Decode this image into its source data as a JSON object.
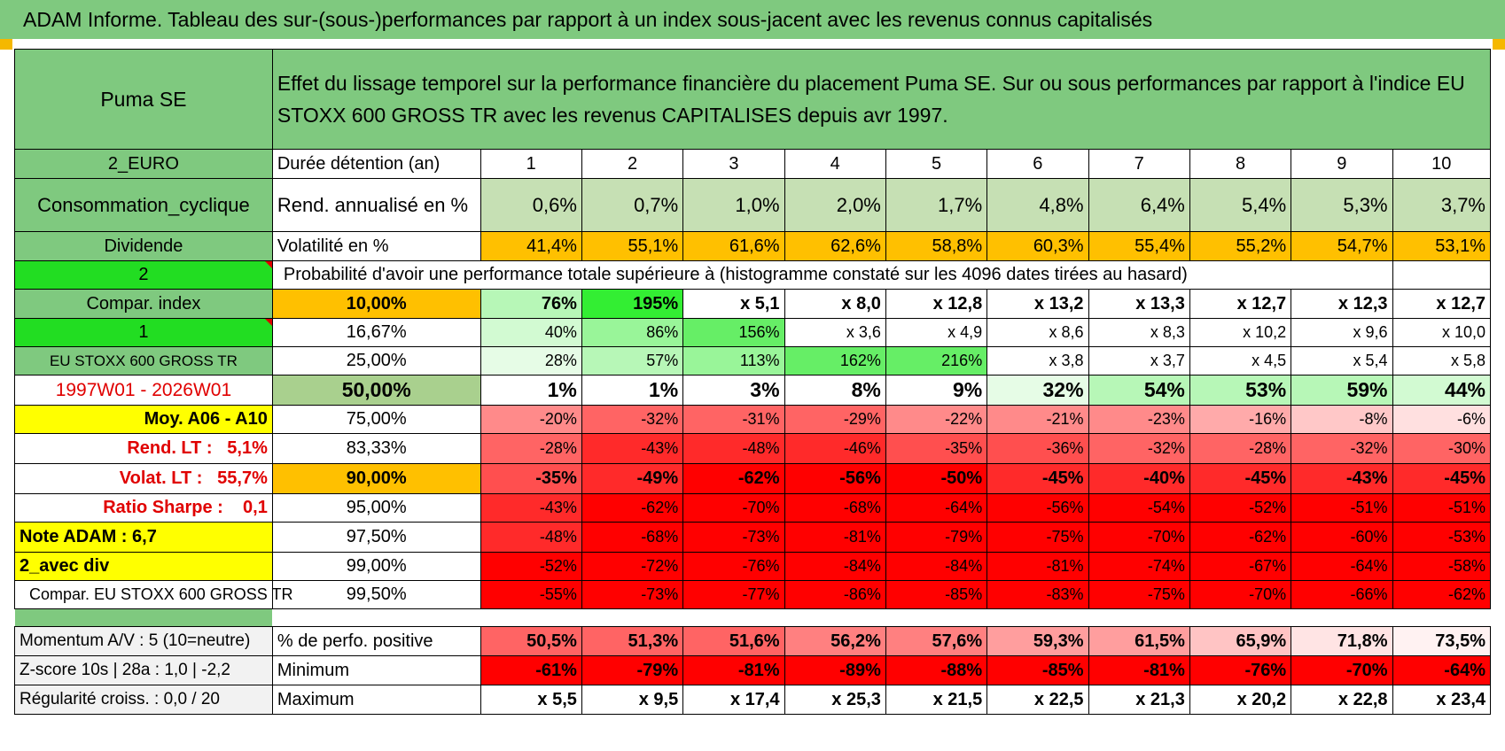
{
  "header": {
    "title": "ADAM Informe. Tableau des sur-(sous-)performances par rapport à un index sous-jacent avec les revenus connus capitalisés"
  },
  "top": {
    "stock": "Puma SE",
    "description_line1": "Effet du lissage temporel sur la performance financière du placement Puma SE. Sur ou sous performances par rapport à l'indice EU",
    "description_line2": "STOXX 600 GROSS TR avec les revenus CAPITALISES depuis avr 1997."
  },
  "left": {
    "currency": "2_EURO",
    "sector": "Consommation_cyclique",
    "dividend": "Dividende",
    "code2": "2",
    "compar_index": "Compar. index",
    "code1": "1",
    "index_name": "EU STOXX 600 GROSS TR",
    "period": "1997W01 - 2026W01",
    "avg": "Moy. A06 - A10",
    "rend_label": "Rend. LT :",
    "rend_value": "5,1%",
    "volat_label": "Volat. LT :",
    "volat_value": "55,7%",
    "sharpe_label": "Ratio Sharpe :",
    "sharpe_value": "0,1",
    "note": "Note ADAM : 6,7",
    "div_mode": "2_avec div",
    "compar_full": "Compar. EU STOXX 600 GROSS TR"
  },
  "grid": {
    "holding_label": "Durée détention (an)",
    "years": [
      "1",
      "2",
      "3",
      "4",
      "5",
      "6",
      "7",
      "8",
      "9",
      "10"
    ],
    "rend_label": "Rend. annualisé en %",
    "rend_values": [
      "0,6%",
      "0,7%",
      "1,0%",
      "2,0%",
      "1,7%",
      "4,8%",
      "6,4%",
      "5,4%",
      "5,3%",
      "3,7%"
    ],
    "vol_label": "Volatilité en %",
    "vol_values": [
      "41,4%",
      "55,1%",
      "61,6%",
      "62,6%",
      "58,8%",
      "60,3%",
      "55,4%",
      "55,2%",
      "54,7%",
      "53,1%"
    ],
    "prob_title": "Probabilité d'avoir une performance totale supérieure à (histogramme constaté sur les 4096 dates tirées au hasard)",
    "quantiles": [
      {
        "label": "10,00%",
        "values": [
          "76%",
          "195%",
          "x 5,1",
          "x 8,0",
          "x 12,8",
          "x 13,2",
          "x 13,3",
          "x 12,7",
          "x 12,3",
          "x 12,7"
        ]
      },
      {
        "label": "16,67%",
        "values": [
          "40%",
          "86%",
          "156%",
          "x 3,6",
          "x 4,9",
          "x 8,6",
          "x 8,3",
          "x 10,2",
          "x 9,6",
          "x 10,0"
        ]
      },
      {
        "label": "25,00%",
        "values": [
          "28%",
          "57%",
          "113%",
          "162%",
          "216%",
          "x 3,8",
          "x 3,7",
          "x 4,5",
          "x 5,4",
          "x 5,8"
        ]
      },
      {
        "label": "50,00%",
        "values": [
          "1%",
          "1%",
          "3%",
          "8%",
          "9%",
          "32%",
          "54%",
          "53%",
          "59%",
          "44%"
        ]
      },
      {
        "label": "75,00%",
        "values": [
          "-20%",
          "-32%",
          "-31%",
          "-29%",
          "-22%",
          "-21%",
          "-23%",
          "-16%",
          "-8%",
          "-6%"
        ]
      },
      {
        "label": "83,33%",
        "values": [
          "-28%",
          "-43%",
          "-48%",
          "-46%",
          "-35%",
          "-36%",
          "-32%",
          "-28%",
          "-32%",
          "-30%"
        ]
      },
      {
        "label": "90,00%",
        "values": [
          "-35%",
          "-49%",
          "-62%",
          "-56%",
          "-50%",
          "-45%",
          "-40%",
          "-45%",
          "-43%",
          "-45%"
        ]
      },
      {
        "label": "95,00%",
        "values": [
          "-43%",
          "-62%",
          "-70%",
          "-68%",
          "-64%",
          "-56%",
          "-54%",
          "-52%",
          "-51%",
          "-51%"
        ]
      },
      {
        "label": "97,50%",
        "values": [
          "-48%",
          "-68%",
          "-73%",
          "-81%",
          "-79%",
          "-75%",
          "-70%",
          "-62%",
          "-60%",
          "-53%"
        ]
      },
      {
        "label": "99,00%",
        "values": [
          "-52%",
          "-72%",
          "-76%",
          "-84%",
          "-84%",
          "-81%",
          "-74%",
          "-67%",
          "-64%",
          "-58%"
        ]
      },
      {
        "label": "99,50%",
        "values": [
          "-55%",
          "-73%",
          "-77%",
          "-86%",
          "-85%",
          "-83%",
          "-75%",
          "-70%",
          "-66%",
          "-62%"
        ]
      }
    ],
    "bottom": [
      {
        "left": "Momentum A/V : 5 (10=neutre)",
        "label": "% de perfo. positive",
        "values": [
          "50,5%",
          "51,3%",
          "51,6%",
          "56,2%",
          "57,6%",
          "59,3%",
          "61,5%",
          "65,9%",
          "71,8%",
          "73,5%"
        ]
      },
      {
        "left": "Z-score 10s | 28a : 1,0 | -2,2",
        "label": "Minimum",
        "values": [
          "-61%",
          "-79%",
          "-81%",
          "-89%",
          "-88%",
          "-85%",
          "-81%",
          "-76%",
          "-70%",
          "-64%"
        ]
      },
      {
        "left": "Régularité croiss. : 0,0 / 20",
        "label": "Maximum",
        "values": [
          "x 5,5",
          "x 9,5",
          "x 17,4",
          "x 25,3",
          "x 21,5",
          "x 22,5",
          "x 21,3",
          "x 20,2",
          "x 22,8",
          "x 23,4"
        ]
      }
    ]
  },
  "colors": {
    "header_green": "#7fc97f",
    "bright_green": "#22dd22",
    "yellow": "#ffff00",
    "orange": "#ffc000",
    "light_olive": "#c6e0b4",
    "dark_red_text": "#e00000"
  }
}
